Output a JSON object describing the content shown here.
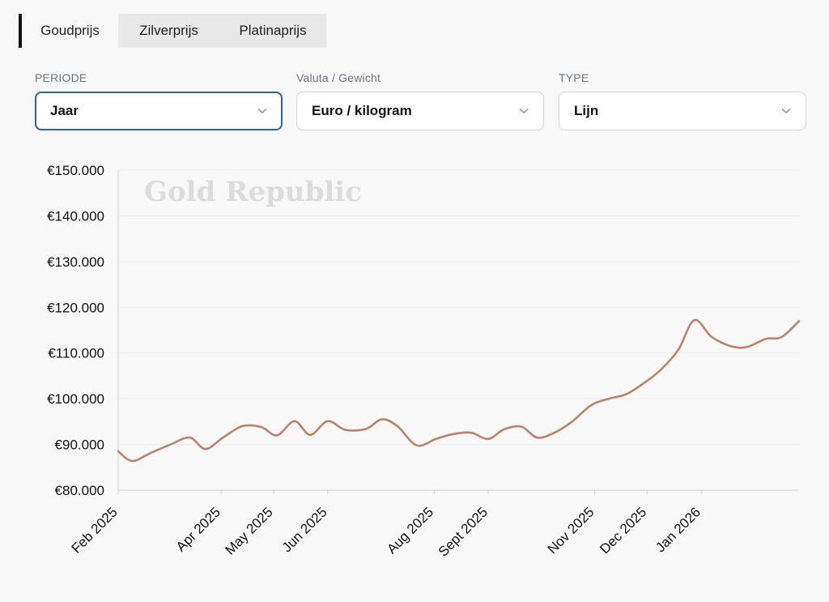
{
  "tabs": [
    {
      "label": "Goudprijs",
      "active": true
    },
    {
      "label": "Zilverprijs",
      "active": false
    },
    {
      "label": "Platinaprijs",
      "active": false
    }
  ],
  "filters": {
    "periode": {
      "label": "PERIODE",
      "value": "Jaar"
    },
    "valuta": {
      "label": "Valuta / Gewicht",
      "value": "Euro / kilogram"
    },
    "type": {
      "label": "TYPE",
      "value": "Lijn"
    }
  },
  "watermark": "Gold Republic",
  "colors": {
    "line": "#b8836a",
    "grid": "#ebebeb",
    "focus": "#2f5fb3"
  },
  "chart_data": {
    "type": "line",
    "ylim": [
      80000,
      150000
    ],
    "y_ticks": [
      {
        "value": 150000,
        "label": "€150.000"
      },
      {
        "value": 140000,
        "label": "€140.000"
      },
      {
        "value": 130000,
        "label": "€130.000"
      },
      {
        "value": 120000,
        "label": "€120.000"
      },
      {
        "value": 110000,
        "label": "€110.000"
      },
      {
        "value": 100000,
        "label": "€100.000"
      },
      {
        "value": 90000,
        "label": "€90.000"
      },
      {
        "value": 80000,
        "label": "€80.000"
      }
    ],
    "x_range": [
      "2025-02-01",
      "2026-02-26"
    ],
    "x_ticks": [
      {
        "date": "2025-02-01",
        "label": "Feb 2025"
      },
      {
        "date": "2025-04-01",
        "label": "Apr 2025"
      },
      {
        "date": "2025-05-01",
        "label": "May 2025"
      },
      {
        "date": "2025-06-01",
        "label": "Jun 2025"
      },
      {
        "date": "2025-08-01",
        "label": "Aug 2025"
      },
      {
        "date": "2025-09-01",
        "label": "Sept 2025"
      },
      {
        "date": "2025-11-01",
        "label": "Nov 2025"
      },
      {
        "date": "2025-12-01",
        "label": "Dec 2025"
      },
      {
        "date": "2026-01-01",
        "label": "Jan 2026"
      }
    ],
    "series": [
      {
        "values": [
          {
            "x": "2025-02-01",
            "y": 88500
          },
          {
            "x": "2025-02-09",
            "y": 86400
          },
          {
            "x": "2025-02-20",
            "y": 88200
          },
          {
            "x": "2025-03-03",
            "y": 90000
          },
          {
            "x": "2025-03-14",
            "y": 91500
          },
          {
            "x": "2025-03-23",
            "y": 89000
          },
          {
            "x": "2025-04-02",
            "y": 91500
          },
          {
            "x": "2025-04-13",
            "y": 94000
          },
          {
            "x": "2025-04-24",
            "y": 93800
          },
          {
            "x": "2025-05-03",
            "y": 92000
          },
          {
            "x": "2025-05-13",
            "y": 95100
          },
          {
            "x": "2025-05-22",
            "y": 92100
          },
          {
            "x": "2025-06-01",
            "y": 95100
          },
          {
            "x": "2025-06-11",
            "y": 93200
          },
          {
            "x": "2025-06-23",
            "y": 93400
          },
          {
            "x": "2025-07-02",
            "y": 95500
          },
          {
            "x": "2025-07-11",
            "y": 94000
          },
          {
            "x": "2025-07-22",
            "y": 89800
          },
          {
            "x": "2025-08-02",
            "y": 91200
          },
          {
            "x": "2025-08-11",
            "y": 92200
          },
          {
            "x": "2025-08-22",
            "y": 92600
          },
          {
            "x": "2025-09-01",
            "y": 91200
          },
          {
            "x": "2025-09-10",
            "y": 93300
          },
          {
            "x": "2025-09-20",
            "y": 93900
          },
          {
            "x": "2025-09-29",
            "y": 91500
          },
          {
            "x": "2025-10-09",
            "y": 92600
          },
          {
            "x": "2025-10-19",
            "y": 95000
          },
          {
            "x": "2025-10-30",
            "y": 98600
          },
          {
            "x": "2025-11-09",
            "y": 100000
          },
          {
            "x": "2025-11-19",
            "y": 101000
          },
          {
            "x": "2025-11-29",
            "y": 103400
          },
          {
            "x": "2025-12-09",
            "y": 106400
          },
          {
            "x": "2025-12-19",
            "y": 110800
          },
          {
            "x": "2025-12-28",
            "y": 117200
          },
          {
            "x": "2026-01-07",
            "y": 113500
          },
          {
            "x": "2026-01-18",
            "y": 111500
          },
          {
            "x": "2026-01-27",
            "y": 111300
          },
          {
            "x": "2026-02-07",
            "y": 113100
          },
          {
            "x": "2026-02-16",
            "y": 113500
          },
          {
            "x": "2026-02-26",
            "y": 117000
          }
        ]
      }
    ]
  }
}
